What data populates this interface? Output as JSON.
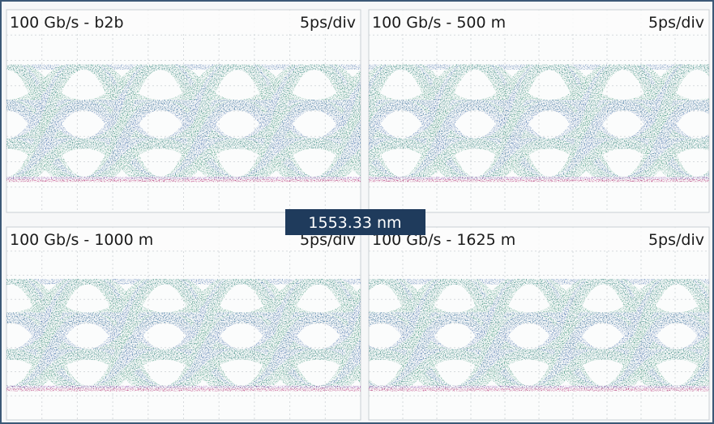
{
  "panels": [
    {
      "title": "100 Gb/s - b2b",
      "scale": "5ps/div"
    },
    {
      "title": "100 Gb/s - 500 m",
      "scale": "5ps/div"
    },
    {
      "title": "100 Gb/s - 1000 m",
      "scale": "5ps/div"
    },
    {
      "title": "100 Gb/s - 1625 m",
      "scale": "5ps/div"
    }
  ],
  "center_label": "1553.33 nm"
}
